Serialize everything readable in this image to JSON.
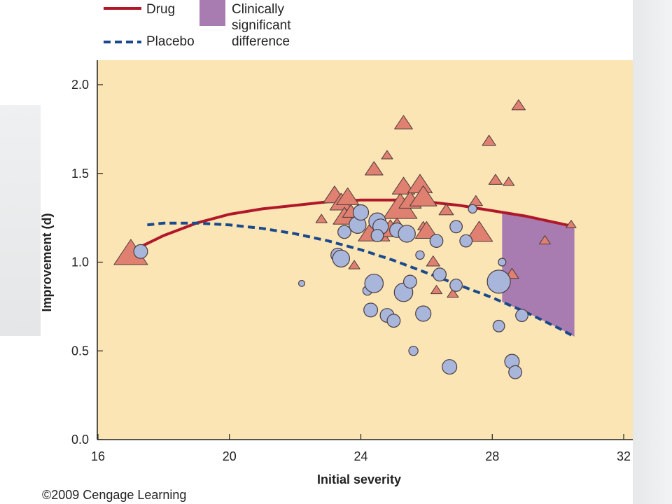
{
  "credit": "©2009 Cengage Learning",
  "colors": {
    "plot_bg": "#fce5b5",
    "drug": "#b0182a",
    "placebo": "#1a4a8c",
    "region": "#a87cb0",
    "triangle_fill": "#e08070",
    "circle_fill": "#a9b6dc",
    "marker_stroke": "#4a3b3b"
  },
  "chart_data": {
    "type": "scatter",
    "xlabel": "Initial severity",
    "ylabel": "Improvement (d)",
    "xlim": [
      16,
      32
    ],
    "ylim": [
      0,
      2.15
    ],
    "xticks": [
      "16",
      "20",
      "24",
      "28",
      "32"
    ],
    "yticks": [
      "0.0",
      "0.5",
      "1.0",
      "1.5",
      "2.0"
    ],
    "legend": {
      "placement": "top-left",
      "items": [
        {
          "label": "Drug",
          "kind": "solid-line"
        },
        {
          "label": "Placebo",
          "kind": "dashed-line"
        },
        {
          "label": "Clinically\nsignificant\ndifference",
          "kind": "swatch"
        }
      ]
    },
    "drug_curve": {
      "name": "Drug",
      "x": [
        17,
        18,
        19,
        20,
        21,
        22,
        23,
        24,
        24.7,
        25.5,
        26,
        27,
        28,
        29,
        30,
        30.5
      ],
      "y": [
        1.06,
        1.15,
        1.22,
        1.27,
        1.3,
        1.32,
        1.34,
        1.35,
        1.35,
        1.35,
        1.34,
        1.32,
        1.29,
        1.26,
        1.22,
        1.2
      ]
    },
    "placebo_curve": {
      "name": "Placebo",
      "x": [
        17.5,
        18,
        19,
        20,
        21,
        22,
        23,
        24,
        25,
        26,
        27,
        28,
        29,
        30,
        30.5
      ],
      "y": [
        1.21,
        1.22,
        1.22,
        1.21,
        1.19,
        1.16,
        1.12,
        1.07,
        1.01,
        0.94,
        0.87,
        0.8,
        0.72,
        0.63,
        0.58
      ]
    },
    "significant_region": {
      "x_start": 28.3,
      "x_end": 30.5
    },
    "drug_points": [
      {
        "x": 17.0,
        "y": 1.04,
        "size": 3
      },
      {
        "x": 22.8,
        "y": 1.24,
        "size": 1
      },
      {
        "x": 23.2,
        "y": 1.37,
        "size": 2
      },
      {
        "x": 23.4,
        "y": 1.33,
        "size": 2
      },
      {
        "x": 23.5,
        "y": 1.25,
        "size": 2
      },
      {
        "x": 23.6,
        "y": 1.36,
        "size": 2
      },
      {
        "x": 23.7,
        "y": 1.28,
        "size": 1.5
      },
      {
        "x": 23.8,
        "y": 0.98,
        "size": 1
      },
      {
        "x": 24.4,
        "y": 1.52,
        "size": 1.6
      },
      {
        "x": 24.4,
        "y": 1.17,
        "size": 2.8
      },
      {
        "x": 24.8,
        "y": 1.6,
        "size": 1
      },
      {
        "x": 24.9,
        "y": 1.18,
        "size": 2
      },
      {
        "x": 25.1,
        "y": 1.22,
        "size": 1
      },
      {
        "x": 25.3,
        "y": 1.78,
        "size": 1.6
      },
      {
        "x": 25.2,
        "y": 1.3,
        "size": 3
      },
      {
        "x": 25.3,
        "y": 1.42,
        "size": 2
      },
      {
        "x": 25.5,
        "y": 1.34,
        "size": 2
      },
      {
        "x": 25.8,
        "y": 1.43,
        "size": 2.2
      },
      {
        "x": 25.9,
        "y": 1.36,
        "size": 2.4
      },
      {
        "x": 25.9,
        "y": 1.2,
        "size": 1
      },
      {
        "x": 26.0,
        "y": 1.17,
        "size": 2
      },
      {
        "x": 26.2,
        "y": 1.0,
        "size": 1.2
      },
      {
        "x": 26.3,
        "y": 0.84,
        "size": 1
      },
      {
        "x": 26.6,
        "y": 1.29,
        "size": 1.3
      },
      {
        "x": 26.8,
        "y": 0.82,
        "size": 1
      },
      {
        "x": 27.5,
        "y": 1.34,
        "size": 1.2
      },
      {
        "x": 27.6,
        "y": 1.16,
        "size": 2.4
      },
      {
        "x": 27.9,
        "y": 1.68,
        "size": 1.2
      },
      {
        "x": 28.1,
        "y": 1.46,
        "size": 1.2
      },
      {
        "x": 28.5,
        "y": 1.45,
        "size": 1
      },
      {
        "x": 28.6,
        "y": 0.93,
        "size": 1.2
      },
      {
        "x": 28.8,
        "y": 1.88,
        "size": 1.2
      },
      {
        "x": 29.6,
        "y": 1.12,
        "size": 1
      },
      {
        "x": 30.4,
        "y": 1.21,
        "size": 0.9
      }
    ],
    "placebo_points": [
      {
        "x": 17.3,
        "y": 1.06,
        "size": 1.8
      },
      {
        "x": 22.2,
        "y": 0.88,
        "size": 0.8
      },
      {
        "x": 23.3,
        "y": 1.04,
        "size": 1.8
      },
      {
        "x": 23.4,
        "y": 1.02,
        "size": 2.2
      },
      {
        "x": 23.5,
        "y": 1.17,
        "size": 1.7
      },
      {
        "x": 23.9,
        "y": 1.21,
        "size": 2.2
      },
      {
        "x": 24.0,
        "y": 1.28,
        "size": 2
      },
      {
        "x": 24.2,
        "y": 0.84,
        "size": 1.2
      },
      {
        "x": 24.4,
        "y": 0.88,
        "size": 2.4
      },
      {
        "x": 24.3,
        "y": 0.73,
        "size": 1.8
      },
      {
        "x": 24.5,
        "y": 1.23,
        "size": 2.2
      },
      {
        "x": 24.6,
        "y": 1.2,
        "size": 2
      },
      {
        "x": 24.5,
        "y": 1.15,
        "size": 1.6
      },
      {
        "x": 24.8,
        "y": 0.7,
        "size": 1.8
      },
      {
        "x": 25.0,
        "y": 0.67,
        "size": 1.7
      },
      {
        "x": 25.1,
        "y": 1.18,
        "size": 1.9
      },
      {
        "x": 25.3,
        "y": 0.83,
        "size": 2.4
      },
      {
        "x": 25.4,
        "y": 1.16,
        "size": 2.2
      },
      {
        "x": 25.5,
        "y": 0.89,
        "size": 1.7
      },
      {
        "x": 25.6,
        "y": 0.5,
        "size": 1.2
      },
      {
        "x": 25.8,
        "y": 1.04,
        "size": 1.1
      },
      {
        "x": 25.9,
        "y": 0.71,
        "size": 2
      },
      {
        "x": 26.3,
        "y": 1.12,
        "size": 1.7
      },
      {
        "x": 26.4,
        "y": 0.93,
        "size": 1.7
      },
      {
        "x": 26.7,
        "y": 0.41,
        "size": 1.9
      },
      {
        "x": 26.9,
        "y": 1.2,
        "size": 1.6
      },
      {
        "x": 26.9,
        "y": 0.87,
        "size": 1.6
      },
      {
        "x": 27.2,
        "y": 1.12,
        "size": 1.6
      },
      {
        "x": 27.4,
        "y": 1.3,
        "size": 1.1
      },
      {
        "x": 28.2,
        "y": 0.89,
        "size": 3
      },
      {
        "x": 28.2,
        "y": 0.64,
        "size": 1.5
      },
      {
        "x": 28.3,
        "y": 1.0,
        "size": 1
      },
      {
        "x": 28.6,
        "y": 0.44,
        "size": 1.9
      },
      {
        "x": 28.7,
        "y": 0.38,
        "size": 1.7
      },
      {
        "x": 28.9,
        "y": 0.7,
        "size": 1.6
      }
    ]
  }
}
